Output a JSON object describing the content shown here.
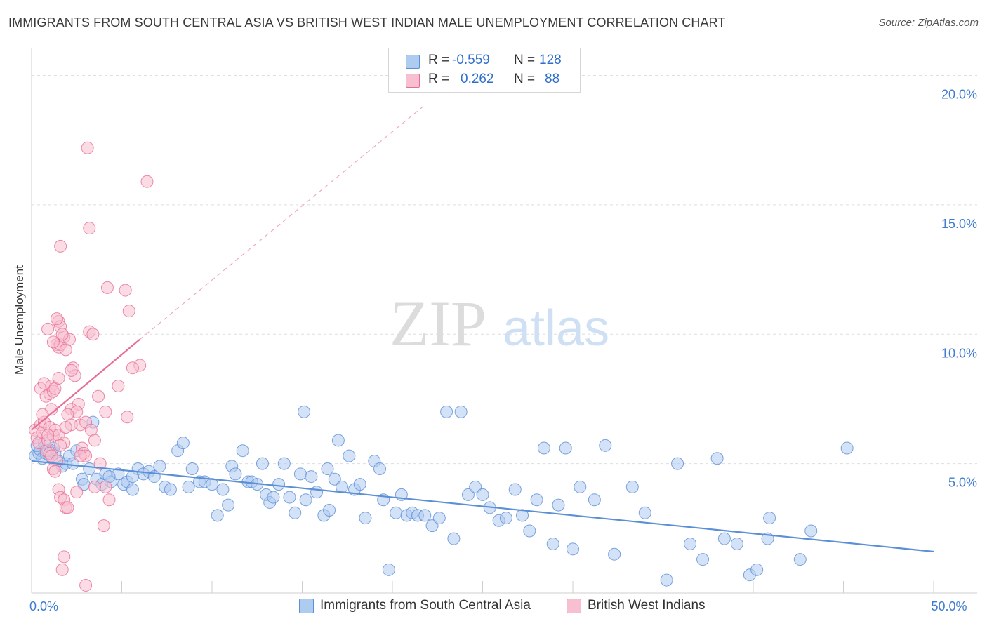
{
  "title": "IMMIGRANTS FROM SOUTH CENTRAL ASIA VS BRITISH WEST INDIAN MALE UNEMPLOYMENT CORRELATION CHART",
  "source": "Source: ZipAtlas.com",
  "watermark": {
    "zip": "ZIP",
    "atlas": "atlas"
  },
  "legend": {
    "r_label": "R =",
    "n_label": "N =",
    "rows": [
      {
        "name": "Immigrants from South Central Asia",
        "r": "-0.559",
        "n": "128",
        "fill": "#aecbf0",
        "stroke": "#5b8fd6"
      },
      {
        "name": "British West Indians",
        "r": "0.262",
        "n": "88",
        "fill": "#f7bfd0",
        "stroke": "#e86d95"
      }
    ]
  },
  "chart_data": {
    "type": "scatter",
    "xlabel": "",
    "ylabel": "Male Unemployment",
    "xlim": [
      0,
      50
    ],
    "ylim": [
      0,
      20.8
    ],
    "x_tick_labels": [
      {
        "value": 0,
        "label": "0.0%"
      },
      {
        "value": 50,
        "label": "50.0%"
      }
    ],
    "y_tick_labels": [
      {
        "value": 5,
        "label": "5.0%"
      },
      {
        "value": 10,
        "label": "10.0%"
      },
      {
        "value": 15,
        "label": "15.0%"
      },
      {
        "value": 20,
        "label": "20.0%"
      }
    ],
    "grid": "horizontal dashed",
    "series": [
      {
        "name": "Immigrants from South Central Asia",
        "color": "#5b8fd6",
        "fill": "#aecbf0",
        "trend": {
          "x": [
            0,
            50
          ],
          "y": [
            5.1,
            1.6
          ],
          "style": "solid"
        },
        "points": [
          [
            0.2,
            5.3
          ],
          [
            0.4,
            5.4
          ],
          [
            0.5,
            5.5
          ],
          [
            0.6,
            5.2
          ],
          [
            0.8,
            5.4
          ],
          [
            1.0,
            5.3
          ],
          [
            1.1,
            5.5
          ],
          [
            1.3,
            5.4
          ],
          [
            1.5,
            5.1
          ],
          [
            1.7,
            4.9
          ],
          [
            1.9,
            5.0
          ],
          [
            2.1,
            5.3
          ],
          [
            2.3,
            5.0
          ],
          [
            2.5,
            5.5
          ],
          [
            0.3,
            5.7
          ],
          [
            0.7,
            5.8
          ],
          [
            0.9,
            5.5
          ],
          [
            1.2,
            5.6
          ],
          [
            3.4,
            6.6
          ],
          [
            2.8,
            4.4
          ],
          [
            3.2,
            4.8
          ],
          [
            3.6,
            4.4
          ],
          [
            3.9,
            4.2
          ],
          [
            4.1,
            4.6
          ],
          [
            4.4,
            4.3
          ],
          [
            4.8,
            4.6
          ],
          [
            5.1,
            4.2
          ],
          [
            5.3,
            4.3
          ],
          [
            5.6,
            4.0
          ],
          [
            5.9,
            4.8
          ],
          [
            6.2,
            4.6
          ],
          [
            6.5,
            4.7
          ],
          [
            6.8,
            4.5
          ],
          [
            7.1,
            4.9
          ],
          [
            7.4,
            4.1
          ],
          [
            7.7,
            4.0
          ],
          [
            8.1,
            5.5
          ],
          [
            8.4,
            5.8
          ],
          [
            8.7,
            4.1
          ],
          [
            8.9,
            4.8
          ],
          [
            9.3,
            4.3
          ],
          [
            9.6,
            4.3
          ],
          [
            10.0,
            4.2
          ],
          [
            10.3,
            3.0
          ],
          [
            10.6,
            4.0
          ],
          [
            10.9,
            3.4
          ],
          [
            11.1,
            4.9
          ],
          [
            11.3,
            4.6
          ],
          [
            11.7,
            5.5
          ],
          [
            12.0,
            4.3
          ],
          [
            12.2,
            4.3
          ],
          [
            12.5,
            4.2
          ],
          [
            12.8,
            5.0
          ],
          [
            13.0,
            3.8
          ],
          [
            13.2,
            3.5
          ],
          [
            13.4,
            3.7
          ],
          [
            13.7,
            4.2
          ],
          [
            14.0,
            5.0
          ],
          [
            14.3,
            3.7
          ],
          [
            14.6,
            3.1
          ],
          [
            14.9,
            4.6
          ],
          [
            15.2,
            3.6
          ],
          [
            15.5,
            4.5
          ],
          [
            15.8,
            3.9
          ],
          [
            16.2,
            3.0
          ],
          [
            16.5,
            3.2
          ],
          [
            16.8,
            4.4
          ],
          [
            17.0,
            5.9
          ],
          [
            17.2,
            4.1
          ],
          [
            17.6,
            5.3
          ],
          [
            17.9,
            4.0
          ],
          [
            18.2,
            4.2
          ],
          [
            18.5,
            2.9
          ],
          [
            19.0,
            5.1
          ],
          [
            19.3,
            4.8
          ],
          [
            19.8,
            0.9
          ],
          [
            19.5,
            3.6
          ],
          [
            20.2,
            3.1
          ],
          [
            20.5,
            3.8
          ],
          [
            20.8,
            3.0
          ],
          [
            21.1,
            3.1
          ],
          [
            21.4,
            3.0
          ],
          [
            21.8,
            3.0
          ],
          [
            22.2,
            2.6
          ],
          [
            22.6,
            2.9
          ],
          [
            23.0,
            7.0
          ],
          [
            23.4,
            2.1
          ],
          [
            23.8,
            7.0
          ],
          [
            24.2,
            3.8
          ],
          [
            24.6,
            4.1
          ],
          [
            25.0,
            3.8
          ],
          [
            25.4,
            3.3
          ],
          [
            25.9,
            2.8
          ],
          [
            26.3,
            2.9
          ],
          [
            26.8,
            4.0
          ],
          [
            27.2,
            3.0
          ],
          [
            27.6,
            2.4
          ],
          [
            28.0,
            3.6
          ],
          [
            28.4,
            5.6
          ],
          [
            28.9,
            1.9
          ],
          [
            29.2,
            3.4
          ],
          [
            29.6,
            5.6
          ],
          [
            30.0,
            1.7
          ],
          [
            30.4,
            4.1
          ],
          [
            31.2,
            3.6
          ],
          [
            31.8,
            5.7
          ],
          [
            32.3,
            1.5
          ],
          [
            33.3,
            4.1
          ],
          [
            34.0,
            3.1
          ],
          [
            35.2,
            0.5
          ],
          [
            35.8,
            5.0
          ],
          [
            36.5,
            1.9
          ],
          [
            37.2,
            1.3
          ],
          [
            38.0,
            5.2
          ],
          [
            38.4,
            2.1
          ],
          [
            39.1,
            1.9
          ],
          [
            39.8,
            0.7
          ],
          [
            40.2,
            0.9
          ],
          [
            40.8,
            2.1
          ],
          [
            40.9,
            2.9
          ],
          [
            42.6,
            1.3
          ],
          [
            43.2,
            2.4
          ],
          [
            45.2,
            5.6
          ],
          [
            2.9,
            4.2
          ],
          [
            15.1,
            7.0
          ],
          [
            16.4,
            4.8
          ],
          [
            5.6,
            4.5
          ],
          [
            4.3,
            4.5
          ]
        ]
      },
      {
        "name": "British West Indians",
        "color": "#e86d95",
        "fill": "#f7bfd0",
        "trend": {
          "x": [
            0,
            6.0
          ],
          "y": [
            6.3,
            9.8
          ],
          "style": "solid",
          "extended": {
            "x": [
              6.0,
              21.7
            ],
            "y": [
              9.8,
              18.8
            ],
            "style": "dashed"
          }
        },
        "points": [
          [
            0.2,
            6.3
          ],
          [
            0.3,
            6.0
          ],
          [
            0.4,
            5.8
          ],
          [
            0.5,
            6.5
          ],
          [
            0.6,
            6.2
          ],
          [
            0.7,
            6.6
          ],
          [
            0.8,
            5.5
          ],
          [
            0.9,
            5.9
          ],
          [
            1.0,
            6.4
          ],
          [
            1.1,
            7.1
          ],
          [
            1.2,
            6.1
          ],
          [
            1.3,
            6.3
          ],
          [
            0.5,
            7.9
          ],
          [
            0.7,
            8.1
          ],
          [
            0.8,
            7.6
          ],
          [
            1.0,
            7.7
          ],
          [
            1.1,
            8.0
          ],
          [
            1.2,
            7.8
          ],
          [
            1.3,
            7.9
          ],
          [
            1.5,
            8.3
          ],
          [
            1.4,
            9.6
          ],
          [
            1.5,
            9.5
          ],
          [
            1.6,
            9.6
          ],
          [
            1.8,
            9.9
          ],
          [
            1.9,
            9.4
          ],
          [
            2.1,
            9.8
          ],
          [
            2.3,
            8.7
          ],
          [
            2.4,
            8.4
          ],
          [
            2.6,
            7.3
          ],
          [
            2.7,
            6.5
          ],
          [
            2.8,
            5.6
          ],
          [
            2.9,
            5.4
          ],
          [
            3.0,
            5.3
          ],
          [
            3.2,
            10.1
          ],
          [
            3.4,
            10.0
          ],
          [
            1.5,
            10.5
          ],
          [
            1.6,
            10.3
          ],
          [
            1.7,
            10.0
          ],
          [
            2.2,
            7.1
          ],
          [
            2.5,
            7.0
          ],
          [
            3.0,
            6.6
          ],
          [
            3.3,
            6.3
          ],
          [
            3.5,
            5.9
          ],
          [
            3.8,
            5.0
          ],
          [
            4.1,
            4.1
          ],
          [
            4.3,
            3.6
          ],
          [
            3.1,
            17.2
          ],
          [
            6.4,
            15.9
          ],
          [
            3.2,
            14.1
          ],
          [
            1.6,
            13.4
          ],
          [
            4.2,
            11.8
          ],
          [
            5.2,
            11.7
          ],
          [
            5.4,
            10.9
          ],
          [
            1.4,
            10.6
          ],
          [
            0.9,
            10.2
          ],
          [
            1.2,
            9.7
          ],
          [
            2.2,
            8.6
          ],
          [
            3.7,
            7.6
          ],
          [
            4.1,
            7.0
          ],
          [
            5.3,
            6.8
          ],
          [
            6.0,
            8.8
          ],
          [
            5.6,
            8.7
          ],
          [
            4.8,
            8.0
          ],
          [
            2.0,
            6.9
          ],
          [
            1.5,
            6.1
          ],
          [
            1.8,
            5.8
          ],
          [
            1.6,
            5.7
          ],
          [
            1.0,
            5.4
          ],
          [
            1.1,
            5.3
          ],
          [
            1.4,
            5.1
          ],
          [
            1.2,
            4.8
          ],
          [
            1.3,
            4.7
          ],
          [
            1.5,
            4.0
          ],
          [
            1.6,
            3.7
          ],
          [
            1.8,
            3.6
          ],
          [
            1.9,
            3.3
          ],
          [
            2.0,
            3.3
          ],
          [
            3.5,
            4.1
          ],
          [
            4.0,
            2.6
          ],
          [
            2.5,
            3.9
          ],
          [
            1.8,
            1.4
          ],
          [
            1.7,
            0.9
          ],
          [
            3.0,
            0.3
          ],
          [
            2.2,
            6.5
          ],
          [
            2.7,
            5.3
          ],
          [
            1.9,
            6.4
          ],
          [
            0.6,
            6.9
          ],
          [
            0.9,
            6.1
          ]
        ]
      }
    ]
  }
}
